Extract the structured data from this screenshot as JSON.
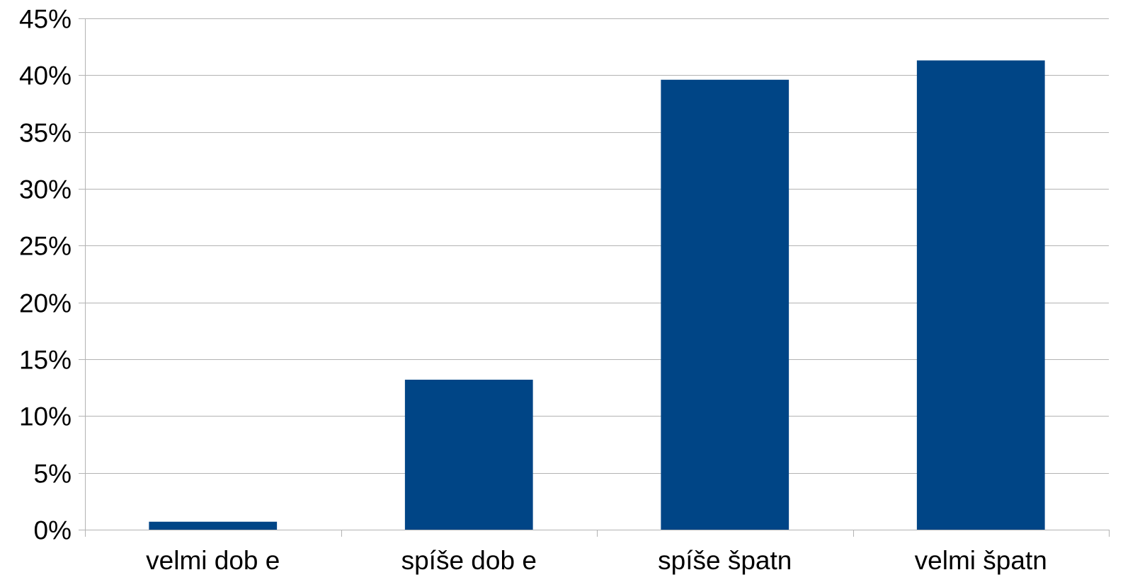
{
  "chart_data": {
    "type": "bar",
    "categories": [
      "velmi dob e",
      "spíše dob e",
      "spíše špatn",
      "velmi špatn"
    ],
    "values": [
      0.7,
      13.2,
      39.6,
      41.3
    ],
    "ylim": [
      0,
      45
    ],
    "yticks": [
      0,
      5,
      10,
      15,
      20,
      25,
      30,
      35,
      40,
      45
    ],
    "ytick_labels": [
      "0%",
      "5%",
      "10%",
      "15%",
      "20%",
      "25%",
      "30%",
      "35%",
      "40%",
      "45%"
    ],
    "grid": true,
    "legend": "none",
    "bar_color": "#004586",
    "grid_color": "#b3b3b3"
  }
}
